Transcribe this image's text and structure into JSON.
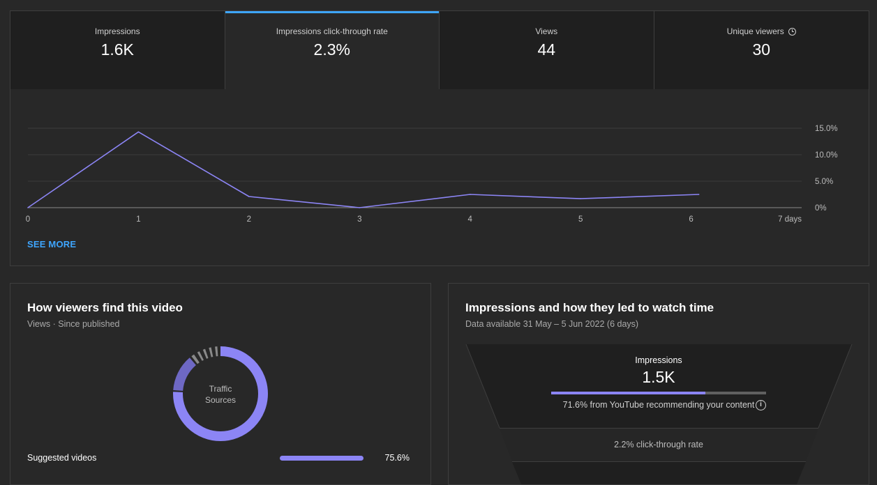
{
  "metrics": [
    {
      "label": "Impressions",
      "value": "1.6K",
      "active": false
    },
    {
      "label": "Impressions click-through rate",
      "value": "2.3%",
      "active": true
    },
    {
      "label": "Views",
      "value": "44",
      "active": false
    },
    {
      "label": "Unique viewers",
      "value": "30",
      "active": false,
      "icon": "clock-icon"
    }
  ],
  "see_more": "SEE MORE",
  "chart_data": {
    "type": "line",
    "x": [
      0,
      1,
      2,
      3,
      4,
      5,
      6.07
    ],
    "y": [
      0,
      14.3,
      2.1,
      0,
      2.5,
      1.7,
      2.5
    ],
    "x_tick_labels": [
      "0",
      "1",
      "2",
      "3",
      "4",
      "5",
      "6",
      "7 days"
    ],
    "y_tick_labels": [
      "15.0%",
      "10.0%",
      "5.0%",
      "0%"
    ],
    "xlim": [
      0,
      7
    ],
    "ylim": [
      0,
      15
    ],
    "grid": true,
    "line_color": "#8c85f5"
  },
  "find_card": {
    "title": "How viewers find this video",
    "subtitle": "Views · Since published",
    "donut_label_line1": "Traffic",
    "donut_label_line2": "Sources",
    "donut_colors": [
      "#8c85f5",
      "#6e68c4",
      "#5a5a5a"
    ],
    "sources": [
      {
        "name": "Suggested videos",
        "value": "75.6%"
      }
    ]
  },
  "funnel_card": {
    "title": "Impressions and how they led to watch time",
    "subtitle": "Data available 31 May – 5 Jun 2022 (6 days)",
    "impressions_label": "Impressions",
    "impressions_value": "1.5K",
    "recommend_share": 71.6,
    "recommend_note": "71.6% from YouTube recommending your content",
    "ctr_text": "2.2% click-through rate"
  }
}
